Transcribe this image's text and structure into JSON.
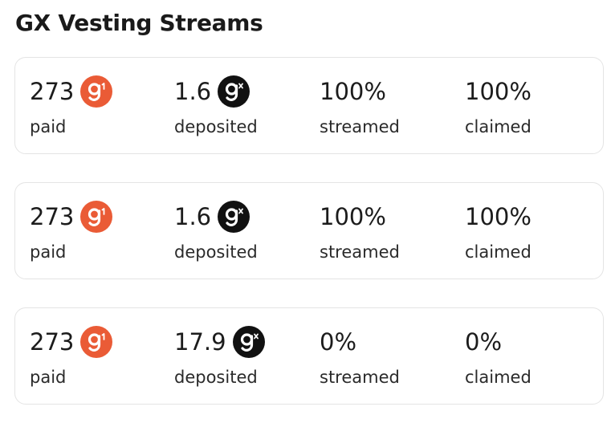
{
  "title": "GX Vesting Streams",
  "colors": {
    "g1_token": "#EA5B36",
    "gx_token": "#111111",
    "card_border": "#E4E4E4"
  },
  "streams": [
    {
      "paid": {
        "value": "273",
        "label": "paid",
        "icon": "g1-token-icon"
      },
      "deposited": {
        "value": "1.6",
        "label": "deposited",
        "icon": "gx-token-icon"
      },
      "streamed": {
        "value": "100%",
        "label": "streamed"
      },
      "claimed": {
        "value": "100%",
        "label": "claimed"
      }
    },
    {
      "paid": {
        "value": "273",
        "label": "paid",
        "icon": "g1-token-icon"
      },
      "deposited": {
        "value": "1.6",
        "label": "deposited",
        "icon": "gx-token-icon"
      },
      "streamed": {
        "value": "100%",
        "label": "streamed"
      },
      "claimed": {
        "value": "100%",
        "label": "claimed"
      }
    },
    {
      "paid": {
        "value": "273",
        "label": "paid",
        "icon": "g1-token-icon"
      },
      "deposited": {
        "value": "17.9",
        "label": "deposited",
        "icon": "gx-token-icon"
      },
      "streamed": {
        "value": "0%",
        "label": "streamed"
      },
      "claimed": {
        "value": "0%",
        "label": "claimed"
      }
    }
  ]
}
